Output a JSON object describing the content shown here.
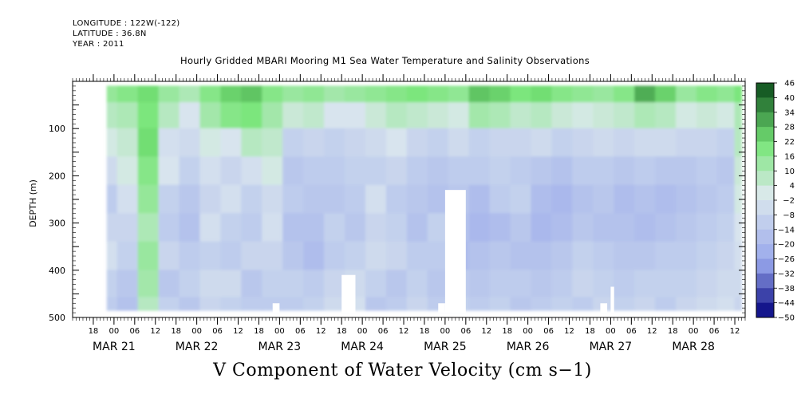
{
  "header": {
    "longitude": "LONGITUDE : 122W(-122)",
    "latitude": "LATITUDE : 36.8N",
    "year": "YEAR : 2011"
  },
  "title": "Hourly Gridded MBARI Mooring M1 Sea Water Temperature and Salinity Observations",
  "bottom_title": "V Component of Water Velocity (cm s−1)",
  "chart_data": {
    "type": "heatmap",
    "title": "Hourly Gridded MBARI Mooring M1 Sea Water Temperature and Salinity Observations",
    "xlabel": "",
    "ylabel": "DEPTH (m)",
    "variable": "V Component of Water Velocity (cm s−1)",
    "x_start": "2011-03-20T12:00",
    "x_end": "2011-03-28T15:00",
    "x_ticks_hours": [
      "18",
      "00",
      "06",
      "12",
      "18",
      "00",
      "06",
      "12",
      "18",
      "00",
      "06",
      "12",
      "18",
      "00",
      "06",
      "12",
      "18",
      "00",
      "06",
      "12",
      "18",
      "00",
      "06",
      "12",
      "18",
      "00",
      "06",
      "12",
      "18",
      "00",
      "06",
      "12"
    ],
    "x_ticks_times": [
      "2011-03-20T18:00",
      "2011-03-21T00:00",
      "2011-03-21T06:00",
      "2011-03-21T12:00",
      "2011-03-21T18:00",
      "2011-03-22T00:00",
      "2011-03-22T06:00",
      "2011-03-22T12:00",
      "2011-03-22T18:00",
      "2011-03-23T00:00",
      "2011-03-23T06:00",
      "2011-03-23T12:00",
      "2011-03-23T18:00",
      "2011-03-24T00:00",
      "2011-03-24T06:00",
      "2011-03-24T12:00",
      "2011-03-24T18:00",
      "2011-03-25T00:00",
      "2011-03-25T06:00",
      "2011-03-25T12:00",
      "2011-03-25T18:00",
      "2011-03-26T00:00",
      "2011-03-26T06:00",
      "2011-03-26T12:00",
      "2011-03-26T18:00",
      "2011-03-27T00:00",
      "2011-03-27T06:00",
      "2011-03-27T12:00",
      "2011-03-27T18:00",
      "2011-03-28T00:00",
      "2011-03-28T06:00",
      "2011-03-28T12:00"
    ],
    "date_labels": [
      "MAR 21",
      "MAR 22",
      "MAR 23",
      "MAR 24",
      "MAR 25",
      "MAR 26",
      "MAR 27",
      "MAR 28"
    ],
    "date_label_times": [
      "2011-03-21T00:00",
      "2011-03-22T00:00",
      "2011-03-23T00:00",
      "2011-03-24T00:00",
      "2011-03-25T00:00",
      "2011-03-26T00:00",
      "2011-03-27T00:00",
      "2011-03-28T00:00"
    ],
    "y_ticks": [
      "100",
      "200",
      "300",
      "400",
      "500"
    ],
    "y_tick_values": [
      100,
      200,
      300,
      400,
      500
    ],
    "ylim": [
      500,
      0
    ],
    "y_inverted": true,
    "data_time_range": [
      "2011-03-20T22:00",
      "2011-03-28T14:00"
    ],
    "data_depth_range": [
      10,
      485
    ],
    "colorbar": {
      "labels": [
        "46",
        "40",
        "34",
        "28",
        "22",
        "16",
        "10",
        "4",
        "−2",
        "−8",
        "−14",
        "−20",
        "−26",
        "−32",
        "−38",
        "−44",
        "−50"
      ],
      "values": [
        46,
        40,
        34,
        28,
        22,
        16,
        10,
        4,
        -2,
        -8,
        -14,
        -20,
        -26,
        -32,
        -38,
        -44,
        -50
      ],
      "min": -50,
      "max": 46
    },
    "columns": [
      {
        "t": "2011-03-20T22:00",
        "v": [
          15,
          8,
          2,
          -6,
          -12,
          -8,
          -4,
          -10,
          -12
        ]
      },
      {
        "t": "2011-03-21T04:00",
        "v": [
          18,
          10,
          5,
          2,
          -4,
          -8,
          -10,
          -14,
          -16
        ]
      },
      {
        "t": "2011-03-21T10:00",
        "v": [
          22,
          20,
          22,
          18,
          15,
          10,
          14,
          12,
          8
        ]
      },
      {
        "t": "2011-03-21T16:00",
        "v": [
          14,
          8,
          -4,
          -2,
          -10,
          -12,
          -8,
          -14,
          -10
        ]
      },
      {
        "t": "2011-03-21T22:00",
        "v": [
          10,
          -2,
          -6,
          -10,
          -14,
          -16,
          -12,
          -10,
          -14
        ]
      },
      {
        "t": "2011-03-22T04:00",
        "v": [
          18,
          12,
          2,
          -4,
          -8,
          -4,
          -10,
          -6,
          -8
        ]
      },
      {
        "t": "2011-03-22T10:00",
        "v": [
          24,
          18,
          -2,
          -8,
          -4,
          -10,
          -12,
          -6,
          -10
        ]
      },
      {
        "t": "2011-03-22T16:00",
        "v": [
          26,
          20,
          8,
          -4,
          -10,
          -12,
          -8,
          -14,
          -12
        ]
      },
      {
        "t": "2011-03-22T22:00",
        "v": [
          18,
          12,
          6,
          2,
          -6,
          -4,
          -8,
          -10,
          -12
        ]
      },
      {
        "t": "2011-03-23T04:00",
        "v": [
          14,
          4,
          -10,
          -14,
          -12,
          -16,
          -14,
          -10,
          -12
        ]
      },
      {
        "t": "2011-03-23T10:00",
        "v": [
          16,
          6,
          -8,
          -12,
          -14,
          -16,
          -18,
          -12,
          -10
        ]
      },
      {
        "t": "2011-03-23T16:00",
        "v": [
          12,
          -2,
          -10,
          -12,
          -14,
          -10,
          -12,
          -8,
          -6
        ]
      },
      {
        "t": "2011-03-23T22:00",
        "v": [
          14,
          -2,
          -8,
          -10,
          -12,
          -14,
          -10,
          -6,
          -4
        ]
      },
      {
        "t": "2011-03-24T04:00",
        "v": [
          16,
          4,
          -6,
          -10,
          -4,
          -8,
          -6,
          -10,
          -14
        ]
      },
      {
        "t": "2011-03-24T10:00",
        "v": [
          18,
          8,
          -2,
          -8,
          -12,
          -10,
          -8,
          -14,
          -12
        ]
      },
      {
        "t": "2011-03-24T16:00",
        "v": [
          20,
          6,
          -8,
          -12,
          -14,
          -16,
          -12,
          -10,
          -8
        ]
      },
      {
        "t": "2011-03-24T22:00",
        "v": [
          18,
          4,
          -10,
          -14,
          -16,
          -10,
          -12,
          -14,
          -12
        ]
      },
      {
        "t": "2011-03-25T04:00",
        "v": [
          16,
          2,
          -6,
          -12,
          -14,
          -16,
          -18,
          -12,
          -10
        ]
      },
      {
        "t": "2011-03-25T10:00",
        "v": [
          26,
          12,
          -10,
          -12,
          -18,
          -20,
          -16,
          -14,
          -12
        ]
      },
      {
        "t": "2011-03-25T16:00",
        "v": [
          24,
          10,
          -8,
          -10,
          -12,
          -18,
          -14,
          -12,
          -10
        ]
      },
      {
        "t": "2011-03-25T22:00",
        "v": [
          20,
          6,
          -8,
          -12,
          -10,
          -14,
          -16,
          -12,
          -14
        ]
      },
      {
        "t": "2011-03-26T04:00",
        "v": [
          22,
          8,
          -6,
          -14,
          -18,
          -20,
          -16,
          -14,
          -12
        ]
      },
      {
        "t": "2011-03-26T10:00",
        "v": [
          18,
          4,
          -10,
          -16,
          -20,
          -18,
          -14,
          -12,
          -10
        ]
      },
      {
        "t": "2011-03-26T16:00",
        "v": [
          16,
          2,
          -8,
          -12,
          -16,
          -14,
          -10,
          -8,
          -12
        ]
      },
      {
        "t": "2011-03-26T22:00",
        "v": [
          14,
          4,
          -6,
          -12,
          -14,
          -16,
          -12,
          -10,
          -8
        ]
      },
      {
        "t": "2011-03-27T04:00",
        "v": [
          18,
          6,
          -8,
          -14,
          -18,
          -16,
          -14,
          -12,
          -10
        ]
      },
      {
        "t": "2011-03-27T10:00",
        "v": [
          30,
          10,
          -6,
          -12,
          -16,
          -18,
          -14,
          -10,
          -8
        ]
      },
      {
        "t": "2011-03-27T16:00",
        "v": [
          24,
          8,
          -6,
          -14,
          -18,
          -16,
          -12,
          -10,
          -12
        ]
      },
      {
        "t": "2011-03-27T22:00",
        "v": [
          14,
          2,
          -8,
          -14,
          -16,
          -14,
          -12,
          -10,
          -8
        ]
      },
      {
        "t": "2011-03-28T04:00",
        "v": [
          18,
          4,
          -8,
          -12,
          -14,
          -12,
          -10,
          -8,
          -6
        ]
      },
      {
        "t": "2011-03-28T10:00",
        "v": [
          16,
          2,
          -10,
          -14,
          -12,
          -10,
          -8,
          -6,
          -4
        ]
      },
      {
        "t": "2011-03-28T14:00",
        "v": [
          20,
          10,
          8,
          4,
          2,
          -2,
          -4,
          -6,
          -8
        ]
      }
    ],
    "column_depths": [
      20,
      70,
      130,
      190,
      250,
      310,
      370,
      430,
      485
    ],
    "missing_regions": [
      {
        "t0": "2011-03-22T22:00",
        "t1": "2011-03-23T00:00",
        "depth0": 470,
        "depth1": 490
      },
      {
        "t0": "2011-03-23T18:00",
        "t1": "2011-03-23T22:00",
        "depth0": 410,
        "depth1": 490
      },
      {
        "t0": "2011-03-24T22:00",
        "t1": "2011-03-24T24:00",
        "depth0": 470,
        "depth1": 490
      },
      {
        "t0": "2011-03-25T00:00",
        "t1": "2011-03-25T06:00",
        "depth0": 230,
        "depth1": 490
      },
      {
        "t0": "2011-03-26T21:00",
        "t1": "2011-03-26T23:00",
        "depth0": 470,
        "depth1": 490
      },
      {
        "t0": "2011-03-27T00:00",
        "t1": "2011-03-27T01:00",
        "depth0": 435,
        "depth1": 490
      }
    ]
  },
  "colors": {
    "blue_max": "#00007d",
    "green_max": "#0a4a1a",
    "neutral": "#dde9ee"
  }
}
